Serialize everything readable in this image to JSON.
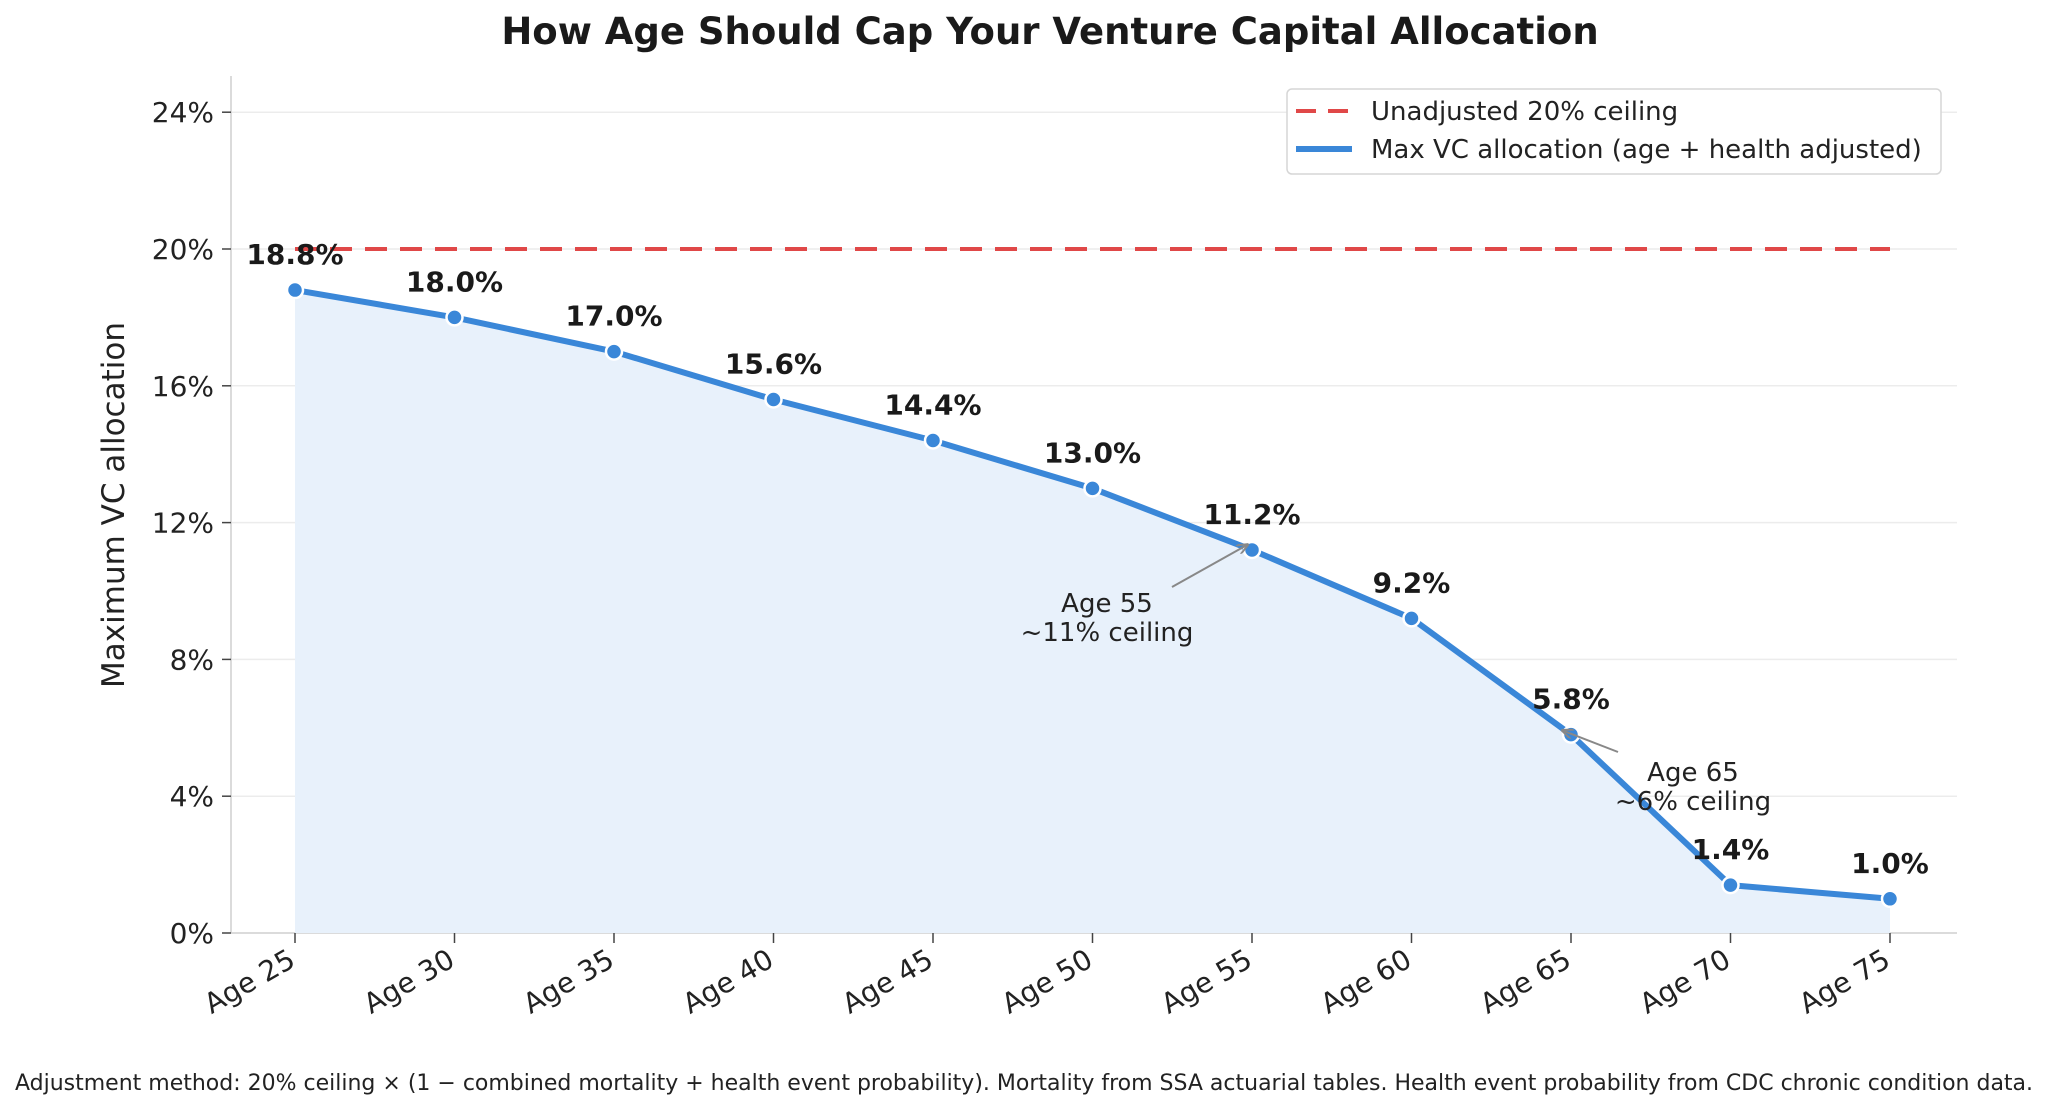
{
  "chart_data": {
    "type": "line",
    "title": "How Age Should Cap Your Venture Capital Allocation",
    "ylabel": "Maximum VC allocation",
    "xlabel": "",
    "categories": [
      "Age 25",
      "Age 30",
      "Age 35",
      "Age 40",
      "Age 45",
      "Age 50",
      "Age 55",
      "Age 60",
      "Age 65",
      "Age 70",
      "Age 75"
    ],
    "ylim": [
      0,
      25
    ],
    "yticks": [
      0,
      4,
      8,
      12,
      16,
      20,
      24
    ],
    "ytick_labels": [
      "0%",
      "4%",
      "8%",
      "12%",
      "16%",
      "20%",
      "24%"
    ],
    "grid": "horizontal",
    "legend_position": "top-right",
    "series": [
      {
        "name": "Max VC allocation (age + health adjusted)",
        "values": [
          18.8,
          18.0,
          17.0,
          15.6,
          14.4,
          13.0,
          11.2,
          9.2,
          5.8,
          1.4,
          1.0
        ],
        "labels": [
          "18.8%",
          "18.0%",
          "17.0%",
          "15.6%",
          "14.4%",
          "13.0%",
          "11.2%",
          "9.2%",
          "5.8%",
          "1.4%",
          "1.0%"
        ],
        "color": "#3a87d8",
        "fill": "#e8f1fb"
      },
      {
        "name": "Unadjusted 20% ceiling",
        "value": 20,
        "style": "dashed",
        "color": "#e04848"
      }
    ],
    "annotations": [
      {
        "lines": [
          "Age 55",
          "~11% ceiling"
        ],
        "target_category": "Age 55",
        "target_value": 11.2
      },
      {
        "lines": [
          "Age 65",
          "~6% ceiling"
        ],
        "target_category": "Age 65",
        "target_value": 5.8
      }
    ],
    "footnote": "Adjustment method: 20% ceiling × (1 − combined mortality + health event probability). Mortality from SSA actuarial tables. Health event probability from CDC chronic condition data."
  }
}
